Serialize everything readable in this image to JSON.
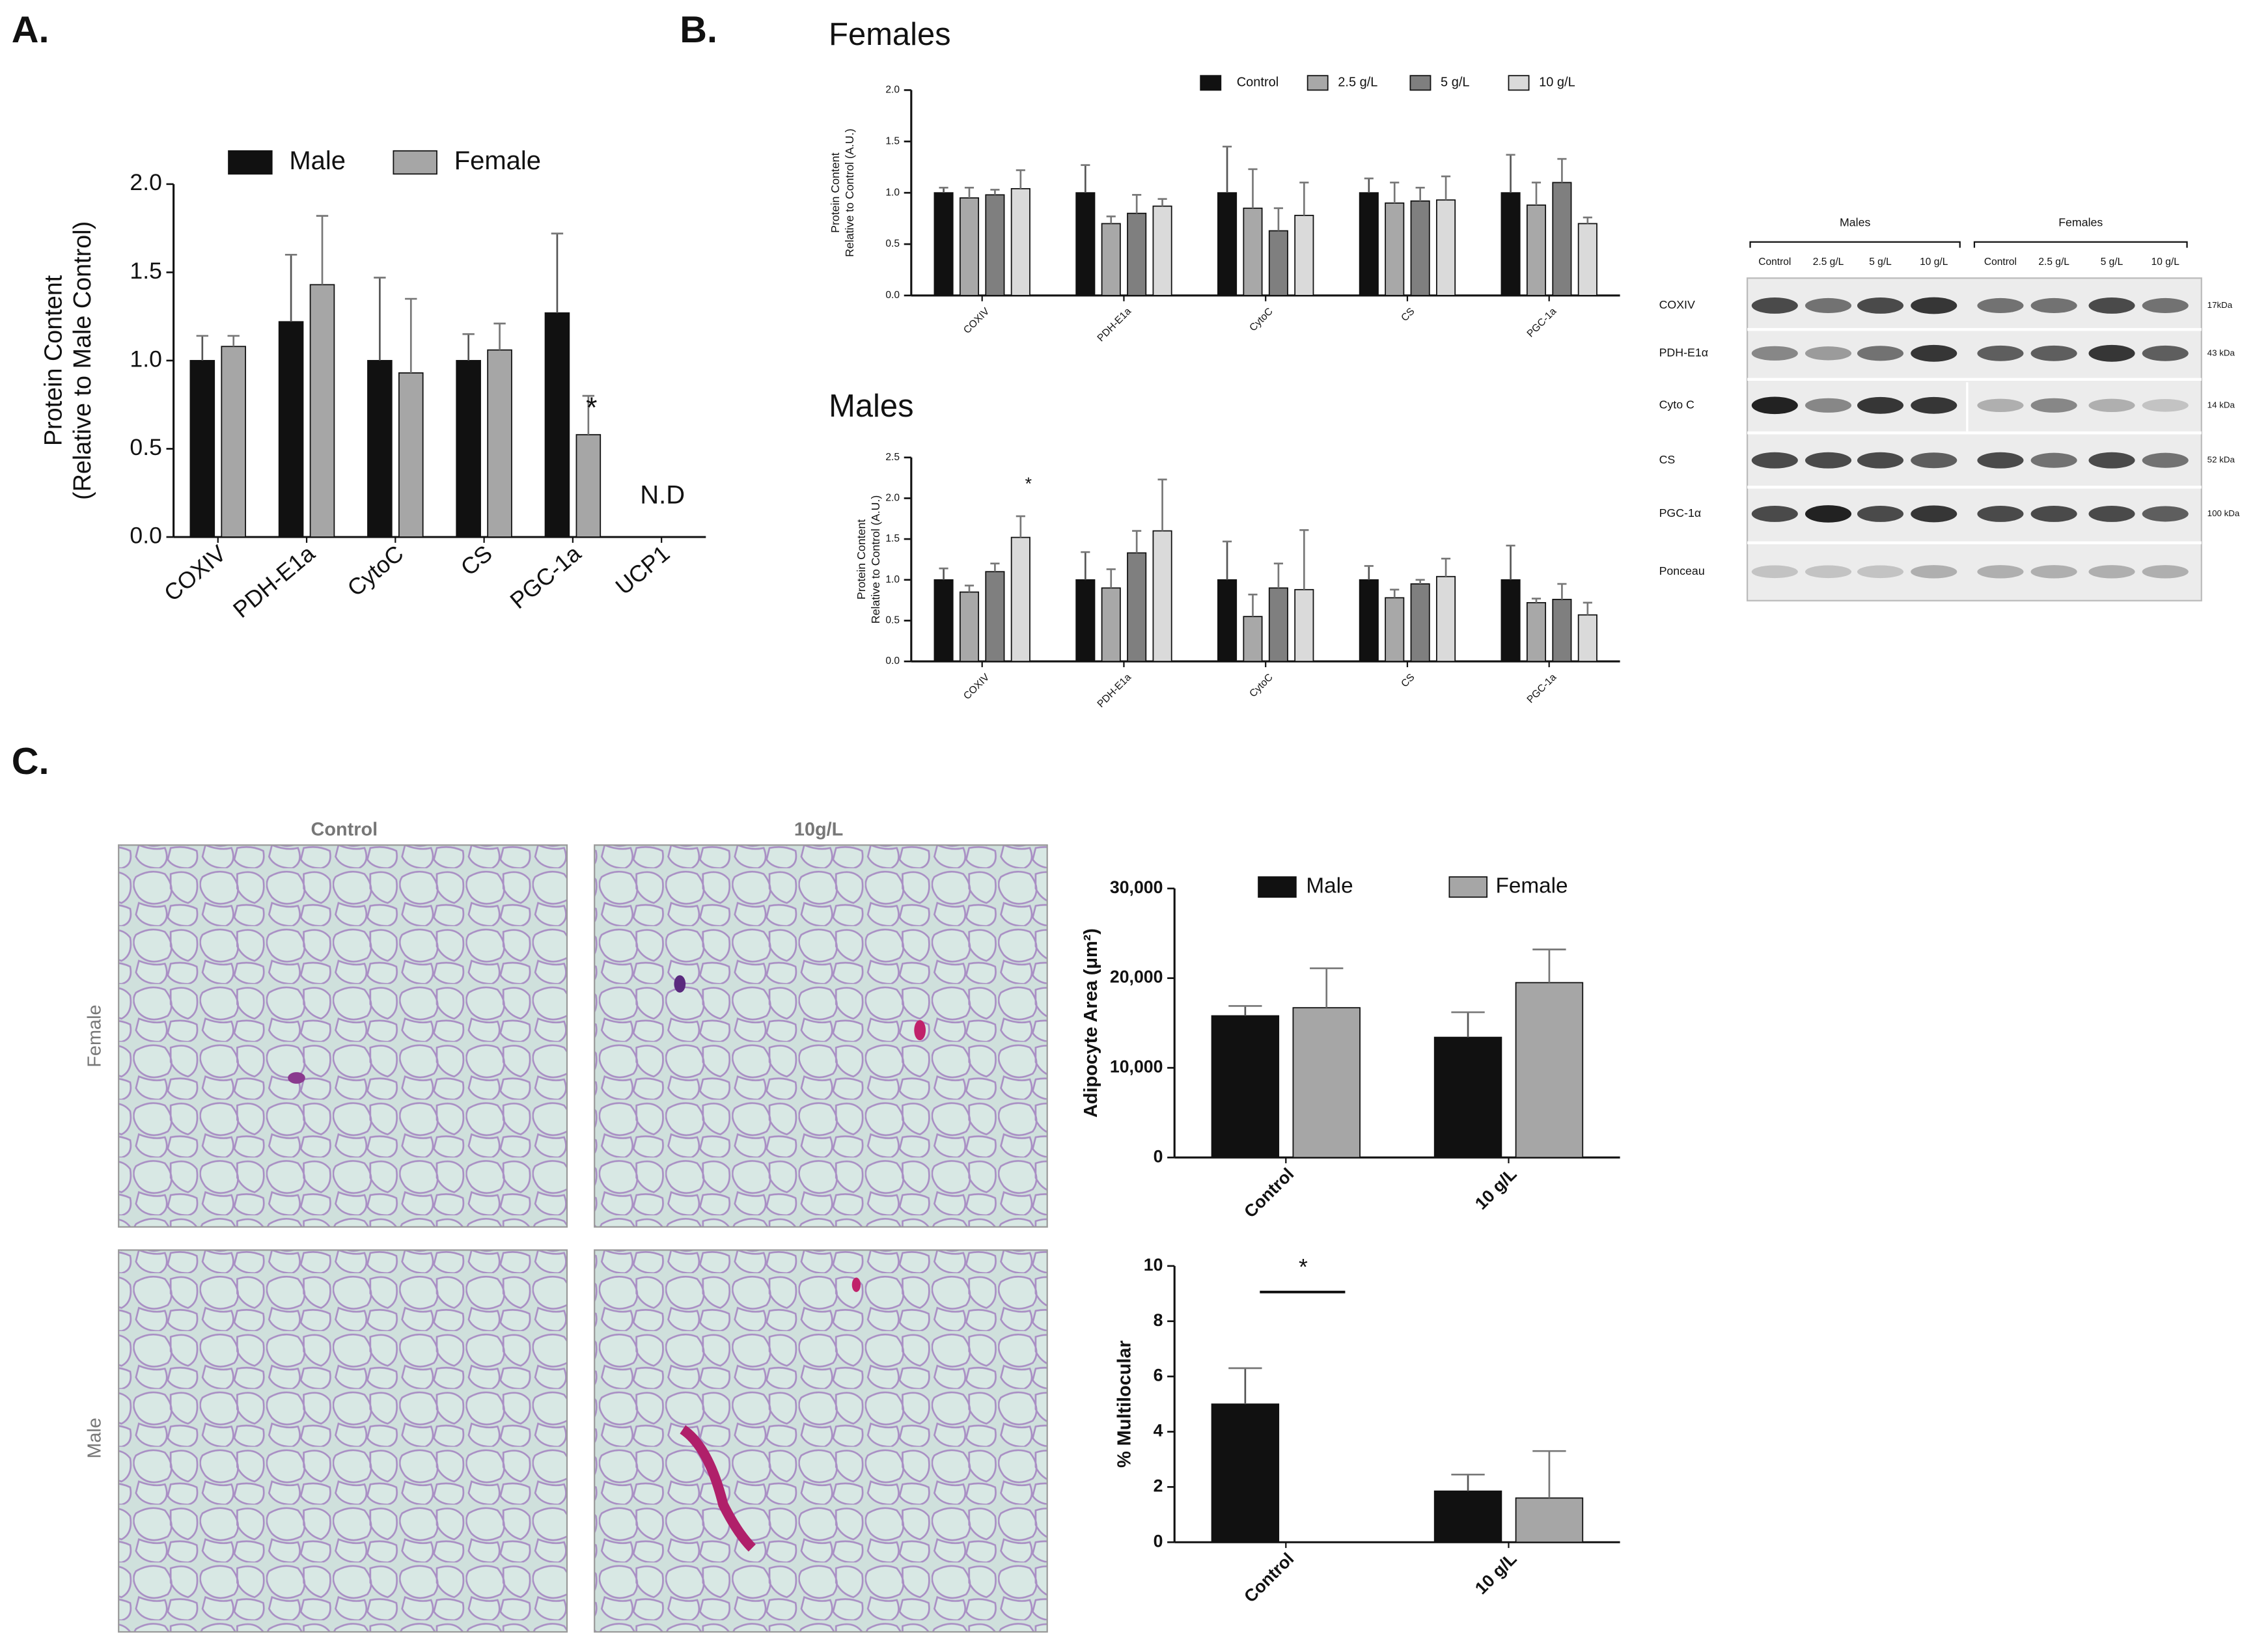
{
  "panels": {
    "a": "A.",
    "b": "B.",
    "c": "C."
  },
  "chart_data": [
    {
      "type": "bar",
      "ylabel": [
        "Protein Content",
        "(Relative to Male Control)"
      ],
      "categories": [
        "COXIV",
        "PDH-E1a",
        "CytoC",
        "CS",
        "PGC-1a",
        "UCP1"
      ],
      "series": [
        {
          "name": "Male",
          "color": "#111111",
          "values": [
            1.0,
            1.22,
            1.0,
            1.0,
            1.27,
            null
          ],
          "errors": [
            0.14,
            0.38,
            0.47,
            0.15,
            0.45,
            null
          ]
        },
        {
          "name": "Female",
          "color": "#a6a6a6",
          "values": [
            1.08,
            1.43,
            0.93,
            1.06,
            0.58,
            null
          ],
          "errors": [
            0.06,
            0.39,
            0.42,
            0.15,
            0.22,
            null
          ]
        }
      ],
      "ylim": [
        0,
        2
      ],
      "yticks": [
        {
          "value": 0,
          "label": "0.0"
        },
        {
          "value": 0.5,
          "label": "0.5"
        },
        {
          "value": 1,
          "label": "1.0"
        },
        {
          "value": 1.5,
          "label": "1.5"
        },
        {
          "value": 2,
          "label": "2.0"
        }
      ],
      "legend": true,
      "annotations": [
        "*",
        "N.D"
      ]
    },
    {
      "type": "bar",
      "title": "Females",
      "ylabel": [
        "Protein Content",
        "Relative to Control (A.U.)"
      ],
      "categories": [
        "COXIV",
        "PDH-E1a",
        "CytoC",
        "CS",
        "PGC-1a"
      ],
      "series": [
        {
          "name": "Control",
          "color": "#111111",
          "values": [
            1.0,
            1.0,
            1.0,
            1.0,
            1.0
          ],
          "errors": [
            0.05,
            0.27,
            0.45,
            0.14,
            0.37
          ]
        },
        {
          "name": "2.5 g/L",
          "color": "#a8a8a8",
          "values": [
            0.95,
            0.7,
            0.85,
            0.9,
            0.88
          ],
          "errors": [
            0.1,
            0.07,
            0.38,
            0.2,
            0.22
          ]
        },
        {
          "name": "5 g/L",
          "color": "#7f7f7f",
          "values": [
            0.98,
            0.8,
            0.63,
            0.92,
            1.1
          ],
          "errors": [
            0.05,
            0.18,
            0.22,
            0.13,
            0.23
          ]
        },
        {
          "name": "10 g/L",
          "color": "#dadada",
          "values": [
            1.04,
            0.87,
            0.78,
            0.93,
            0.7
          ],
          "errors": [
            0.18,
            0.07,
            0.32,
            0.23,
            0.06
          ]
        }
      ],
      "ylim": [
        0,
        2
      ],
      "yticks": [
        {
          "value": 0,
          "label": "0.0"
        },
        {
          "value": 0.5,
          "label": "0.5"
        },
        {
          "value": 1,
          "label": "1.0"
        },
        {
          "value": 1.5,
          "label": "1.5"
        },
        {
          "value": 2,
          "label": "2.0"
        }
      ],
      "legend": true
    },
    {
      "type": "bar",
      "title": "Males",
      "ylabel": [
        "Protein Content",
        "Relative to Control (A.U.)"
      ],
      "categories": [
        "COXIV",
        "PDH-E1a",
        "CytoC",
        "CS",
        "PGC-1a"
      ],
      "series": [
        {
          "color": "#111111",
          "values": [
            1.0,
            1.0,
            1.0,
            1.0,
            1.0
          ],
          "errors": [
            0.14,
            0.34,
            0.47,
            0.17,
            0.42
          ]
        },
        {
          "color": "#a8a8a8",
          "values": [
            0.85,
            0.9,
            0.55,
            0.78,
            0.72
          ],
          "errors": [
            0.08,
            0.23,
            0.27,
            0.1,
            0.05
          ]
        },
        {
          "color": "#7f7f7f",
          "values": [
            1.1,
            1.33,
            0.9,
            0.95,
            0.76
          ],
          "errors": [
            0.1,
            0.27,
            0.3,
            0.05,
            0.19
          ]
        },
        {
          "color": "#dadada",
          "values": [
            1.52,
            1.6,
            0.88,
            1.04,
            0.57
          ],
          "errors": [
            0.26,
            0.63,
            0.73,
            0.22,
            0.15
          ]
        }
      ],
      "ylim": [
        0,
        2.5
      ],
      "yticks": [
        {
          "value": 0,
          "label": "0.0"
        },
        {
          "value": 0.5,
          "label": "0.5"
        },
        {
          "value": 1,
          "label": "1.0"
        },
        {
          "value": 1.5,
          "label": "1.5"
        },
        {
          "value": 2,
          "label": "2.0"
        },
        {
          "value": 2.5,
          "label": "2.5"
        }
      ],
      "legend": false,
      "annotations": [
        "*"
      ]
    },
    {
      "type": "bar",
      "ylabel": [
        "Adipocyte Area (μm²)"
      ],
      "categories": [
        "Control",
        "10 g/L"
      ],
      "series": [
        {
          "name": "Male",
          "color": "#111111",
          "values": [
            15800,
            13400
          ],
          "errors": [
            1100,
            2800
          ]
        },
        {
          "name": "Female",
          "color": "#a6a6a6",
          "values": [
            16700,
            19500
          ],
          "errors": [
            4400,
            3700
          ]
        }
      ],
      "ylim": [
        0,
        30000
      ],
      "yticks": [
        0,
        {
          "value": 10000,
          "label": "10,000"
        },
        {
          "value": 20000,
          "label": "20,000"
        },
        {
          "value": 30000,
          "label": "30,000"
        }
      ],
      "legend": true
    },
    {
      "type": "bar",
      "ylabel": [
        "% Multilocular"
      ],
      "categories": [
        "Control",
        "10 g/L"
      ],
      "series": [
        {
          "color": "#111111",
          "values": [
            5.0,
            1.85
          ],
          "errors": [
            1.3,
            0.6
          ]
        },
        {
          "color": "#a6a6a6",
          "values": [
            0,
            1.6
          ],
          "errors": [
            0,
            1.7
          ]
        }
      ],
      "ylim": [
        0,
        10
      ],
      "yticks": [
        0,
        2,
        4,
        6,
        8,
        10
      ],
      "legend": false,
      "annotations": [
        "*"
      ]
    }
  ],
  "blot": {
    "groups": [
      "Males",
      "Females"
    ],
    "lanes": [
      "Control",
      "2.5 g/L",
      "5 g/L",
      "10 g/L",
      "Control",
      "2.5 g/L",
      "5 g/L",
      "10 g/L"
    ],
    "rows": [
      {
        "label": "COXIV",
        "size": "17kDa"
      },
      {
        "label": "PDH-E1α",
        "size": "43 kDa"
      },
      {
        "label": "Cyto C",
        "size": "14 kDa"
      },
      {
        "label": "CS",
        "size": "52 kDa"
      },
      {
        "label": "PGC-1α",
        "size": "100 kDa"
      },
      {
        "label": "Ponceau"
      }
    ]
  },
  "histology": {
    "columns": [
      "Control",
      "10g/L"
    ],
    "rows": [
      "Female",
      "Male"
    ]
  }
}
